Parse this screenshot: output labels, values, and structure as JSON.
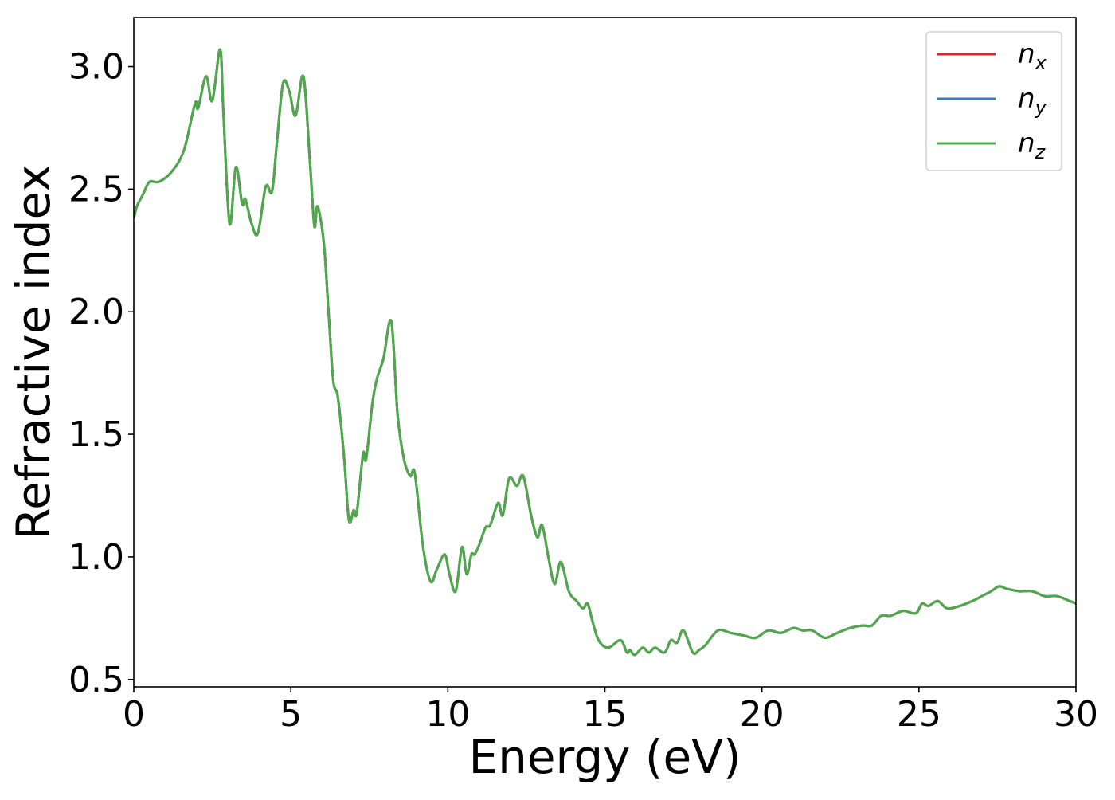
{
  "chart_data": {
    "type": "line",
    "title": "",
    "xlabel": "Energy (eV)",
    "ylabel": "Refractive index",
    "xlim": [
      0,
      30
    ],
    "ylim": [
      0.47,
      3.2
    ],
    "xticks": [
      0,
      5,
      10,
      15,
      20,
      25,
      30
    ],
    "xtick_labels": [
      "0",
      "5",
      "10",
      "15",
      "20",
      "25",
      "30"
    ],
    "yticks": [
      0.5,
      1.0,
      1.5,
      2.0,
      2.5,
      3.0
    ],
    "ytick_labels": [
      "0.5",
      "1.0",
      "1.5",
      "2.0",
      "2.5",
      "3.0"
    ],
    "grid": false,
    "legend_position": "top-right",
    "note": "all three series coincide; only the last drawn (n_z) is visible",
    "series": [
      {
        "name": "n",
        "subscript": "x",
        "color": "#d62728"
      },
      {
        "name": "n",
        "subscript": "y",
        "color": "#3a7bb0"
      },
      {
        "name": "n",
        "subscript": "z",
        "color": "#4fa84a"
      }
    ],
    "x": [
      0,
      0.1,
      0.3,
      0.5,
      0.8,
      1.2,
      1.6,
      1.95,
      2.05,
      2.3,
      2.5,
      2.75,
      2.85,
      3.05,
      3.25,
      3.45,
      3.55,
      3.75,
      3.95,
      4.2,
      4.4,
      4.55,
      4.75,
      4.95,
      5.15,
      5.4,
      5.6,
      5.75,
      5.85,
      6.05,
      6.2,
      6.35,
      6.5,
      6.7,
      6.85,
      7.0,
      7.1,
      7.3,
      7.4,
      7.6,
      7.75,
      7.95,
      8.2,
      8.4,
      8.6,
      8.8,
      8.95,
      9.2,
      9.45,
      9.65,
      9.9,
      10.05,
      10.25,
      10.45,
      10.6,
      10.75,
      10.85,
      11.0,
      11.2,
      11.35,
      11.6,
      11.75,
      11.95,
      12.2,
      12.4,
      12.65,
      12.85,
      13.0,
      13.2,
      13.4,
      13.6,
      13.85,
      14.1,
      14.3,
      14.45,
      14.6,
      14.8,
      15.1,
      15.5,
      15.7,
      15.8,
      15.95,
      16.2,
      16.4,
      16.6,
      16.9,
      17.1,
      17.3,
      17.5,
      17.8,
      18.0,
      18.2,
      18.6,
      19.0,
      19.4,
      19.8,
      20.2,
      20.6,
      21.0,
      21.3,
      21.6,
      22.0,
      22.4,
      22.8,
      23.2,
      23.5,
      23.8,
      24.1,
      24.5,
      24.9,
      25.1,
      25.3,
      25.6,
      25.9,
      26.3,
      26.7,
      27.0,
      27.3,
      27.55,
      27.8,
      28.2,
      28.6,
      29.0,
      29.4,
      29.8,
      30.0
    ],
    "y": [
      2.38,
      2.43,
      2.48,
      2.53,
      2.53,
      2.57,
      2.66,
      2.85,
      2.83,
      2.96,
      2.86,
      3.07,
      2.82,
      2.36,
      2.59,
      2.44,
      2.46,
      2.36,
      2.32,
      2.51,
      2.49,
      2.68,
      2.93,
      2.9,
      2.8,
      2.96,
      2.63,
      2.35,
      2.43,
      2.28,
      2.0,
      1.72,
      1.65,
      1.4,
      1.15,
      1.19,
      1.18,
      1.42,
      1.4,
      1.63,
      1.73,
      1.81,
      1.96,
      1.58,
      1.4,
      1.33,
      1.34,
      1.05,
      0.9,
      0.95,
      1.01,
      0.93,
      0.86,
      1.04,
      0.93,
      1.01,
      1.01,
      1.05,
      1.12,
      1.13,
      1.22,
      1.17,
      1.32,
      1.29,
      1.33,
      1.17,
      1.08,
      1.13,
      1.0,
      0.89,
      0.98,
      0.86,
      0.82,
      0.79,
      0.81,
      0.74,
      0.66,
      0.63,
      0.66,
      0.61,
      0.62,
      0.6,
      0.63,
      0.61,
      0.63,
      0.61,
      0.66,
      0.65,
      0.7,
      0.61,
      0.62,
      0.64,
      0.7,
      0.69,
      0.68,
      0.67,
      0.7,
      0.69,
      0.71,
      0.7,
      0.7,
      0.67,
      0.69,
      0.71,
      0.72,
      0.72,
      0.76,
      0.76,
      0.78,
      0.77,
      0.81,
      0.8,
      0.82,
      0.79,
      0.8,
      0.82,
      0.84,
      0.86,
      0.88,
      0.87,
      0.86,
      0.86,
      0.84,
      0.84,
      0.82,
      0.81
    ]
  }
}
